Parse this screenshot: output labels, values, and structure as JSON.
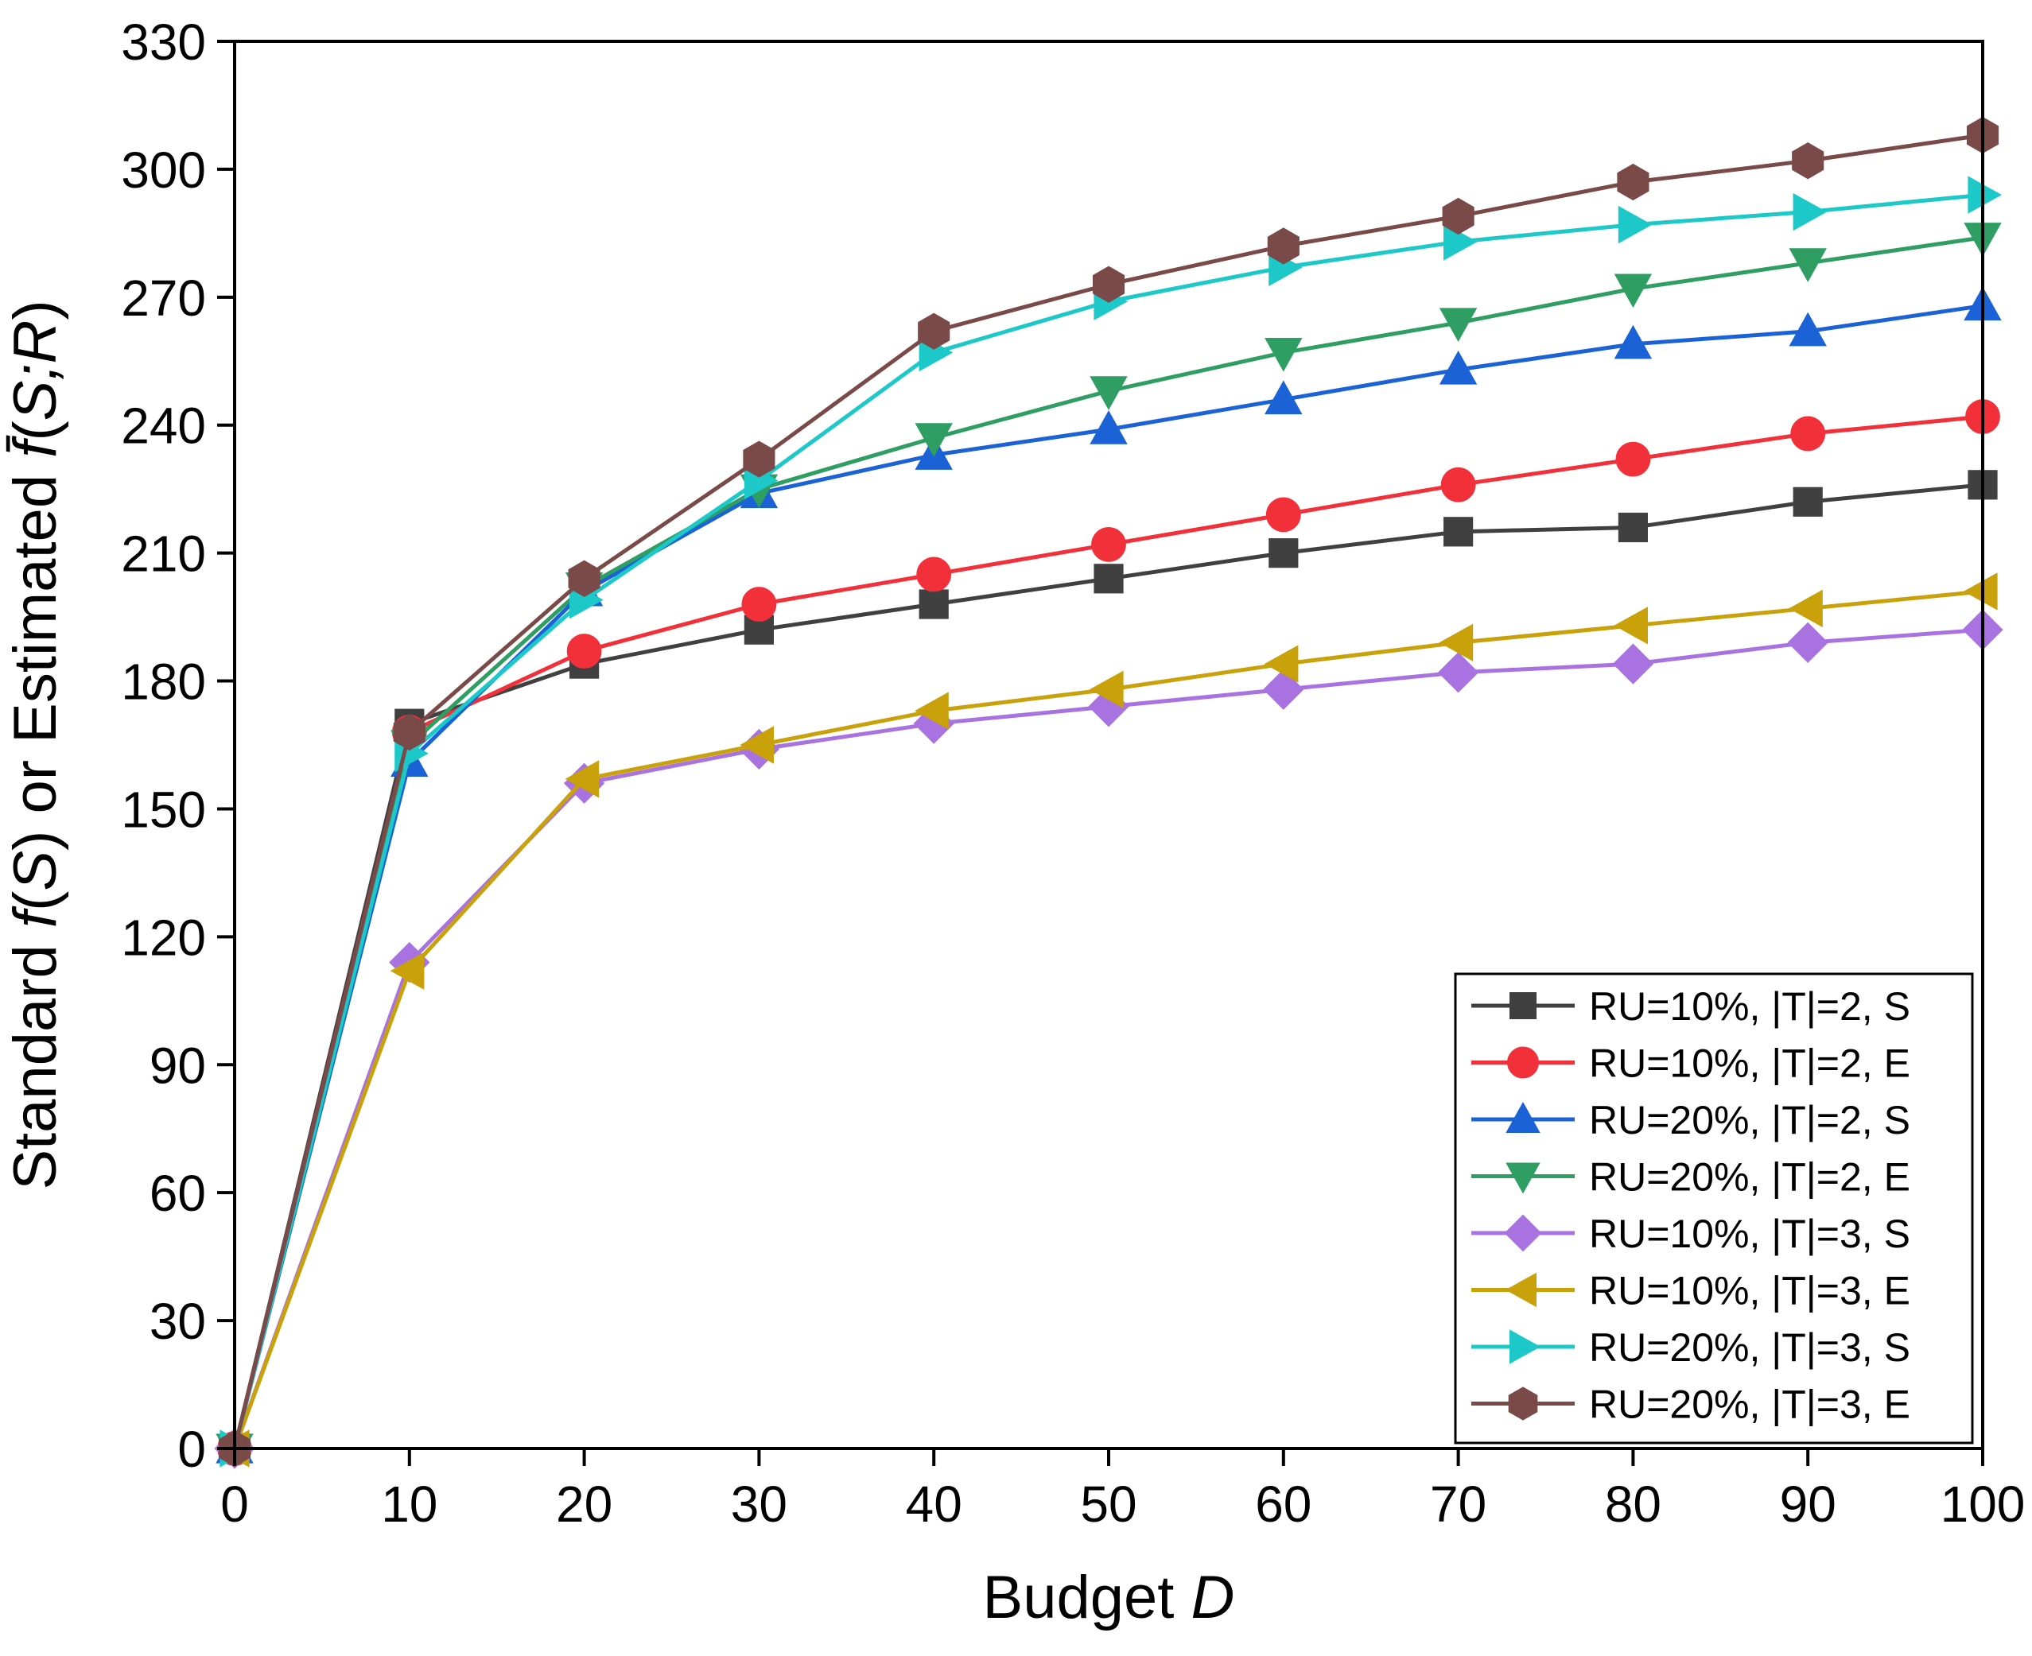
{
  "chart_data": {
    "type": "line",
    "xlabel": {
      "prefix": "Budget ",
      "var": "D"
    },
    "ylabel": {
      "text1": "Standard ",
      "var1": "f",
      "text2": "(",
      "var2": "S",
      "text3": ") or Estimated ",
      "var3": "f̄",
      "text4": "(",
      "var4": "S;R",
      "text5": ")"
    },
    "xlim": [
      0,
      100
    ],
    "ylim": [
      0,
      330
    ],
    "x_ticks": [
      "0",
      "10",
      "20",
      "30",
      "40",
      "50",
      "60",
      "70",
      "80",
      "90",
      "100"
    ],
    "y_ticks": [
      "0",
      "30",
      "60",
      "90",
      "120",
      "150",
      "180",
      "210",
      "240",
      "270",
      "300",
      "330"
    ],
    "x": [
      0,
      10,
      20,
      30,
      40,
      50,
      60,
      70,
      80,
      90,
      100
    ],
    "legend_position": "bottom-right",
    "series": [
      {
        "name": "RU=10%, |T|=2, S",
        "color": "#404040",
        "marker": "square",
        "values": [
          0,
          170,
          184,
          192,
          198,
          204,
          210,
          215,
          216,
          222,
          226
        ]
      },
      {
        "name": "RU=10%, |T|=2, E",
        "color": "#f2303a",
        "marker": "circle",
        "values": [
          0,
          168,
          187,
          198,
          205,
          212,
          219,
          226,
          232,
          238,
          242
        ]
      },
      {
        "name": "RU=20%, |T|=2, S",
        "color": "#1a62d6",
        "marker": "triangle-up",
        "values": [
          0,
          161,
          201,
          224,
          233,
          239,
          246,
          253,
          259,
          262,
          268
        ]
      },
      {
        "name": "RU=20%, |T|=2, E",
        "color": "#2e9e62",
        "marker": "triangle-down",
        "values": [
          0,
          165,
          202,
          225,
          237,
          248,
          257,
          264,
          272,
          278,
          284
        ]
      },
      {
        "name": "RU=10%, |T|=3, S",
        "color": "#a872e0",
        "marker": "diamond",
        "values": [
          0,
          114,
          156,
          164,
          170,
          174,
          178,
          182,
          184,
          189,
          192
        ]
      },
      {
        "name": "RU=10%, |T|=3, E",
        "color": "#c9a10a",
        "marker": "triangle-left",
        "values": [
          0,
          112,
          157,
          165,
          173,
          178,
          184,
          189,
          193,
          197,
          201
        ]
      },
      {
        "name": "RU=20%, |T|=3, S",
        "color": "#1cc8c8",
        "marker": "triangle-right",
        "values": [
          0,
          163,
          199,
          227,
          257,
          269,
          277,
          283,
          287,
          290,
          294
        ]
      },
      {
        "name": "RU=20%, |T|=3, E",
        "color": "#7a4a48",
        "marker": "hexagon",
        "values": [
          0,
          168,
          204,
          232,
          262,
          273,
          282,
          289,
          297,
          302,
          308
        ]
      }
    ]
  }
}
